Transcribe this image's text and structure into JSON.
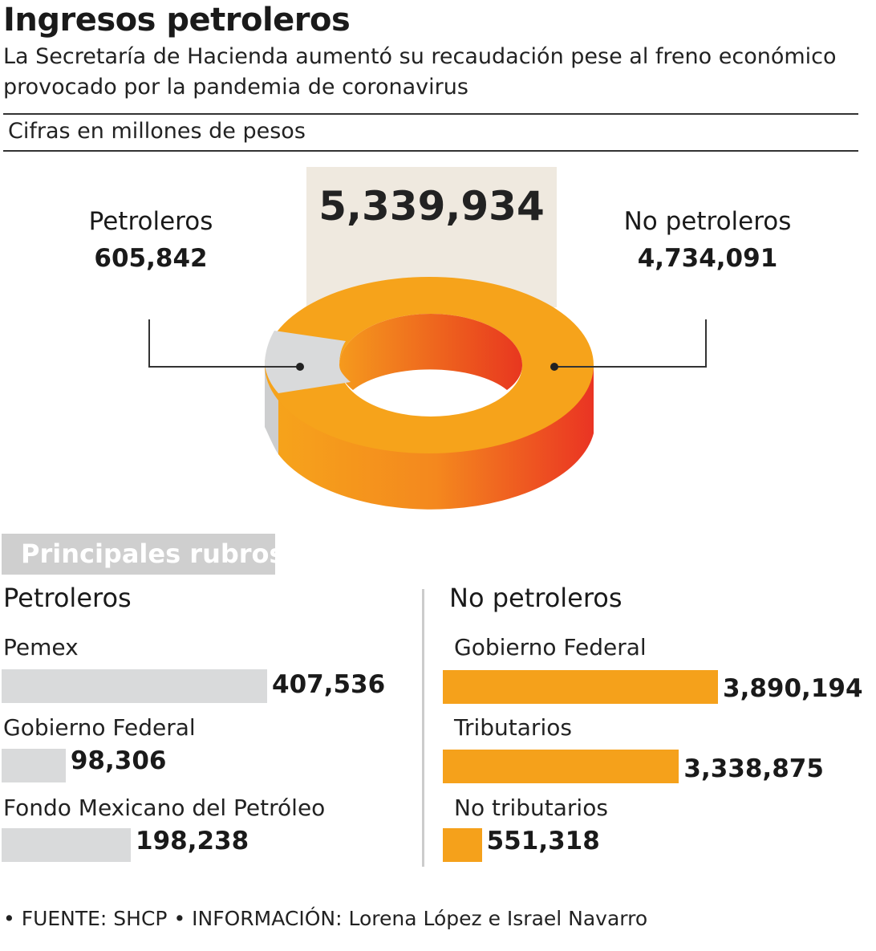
{
  "title": "Ingresos petroleros",
  "subtitle": "La Secretaría de Hacienda aumentó su recaudación pese al freno económico provocado por la pandemia de coronavirus",
  "units": "Cifras en millones de pesos",
  "colors": {
    "orange": "#f5a11b",
    "red": "#ea3423",
    "gray": "#d9dadb",
    "beige": "#efe9df"
  },
  "chart_data": [
    {
      "type": "pie",
      "total": "5,339,934",
      "slices": [
        {
          "label": "Petroleros",
          "value_label": "605,842",
          "value": 605842
        },
        {
          "label": "No petroleros",
          "value_label": "4,734,091",
          "value": 4734091
        }
      ]
    },
    {
      "type": "bar",
      "title": "Principales rubros",
      "columns": [
        {
          "name": "Petroleros",
          "categories": [
            "Pemex",
            "Gobierno Federal",
            "Fondo Mexicano del Petróleo"
          ],
          "values": [
            407536,
            98306,
            198238
          ],
          "value_labels": [
            "407,536",
            "98,306",
            "198,238"
          ]
        },
        {
          "name": "No petroleros",
          "categories": [
            "Gobierno Federal",
            "Tributarios",
            "No tributarios"
          ],
          "values": [
            3890194,
            3338875,
            551318
          ],
          "value_labels": [
            "3,890,194",
            "3,338,875",
            "551,318"
          ]
        }
      ]
    }
  ],
  "source": "• FUENTE: SHCP • INFORMACIÓN: Lorena López e Israel Navarro"
}
